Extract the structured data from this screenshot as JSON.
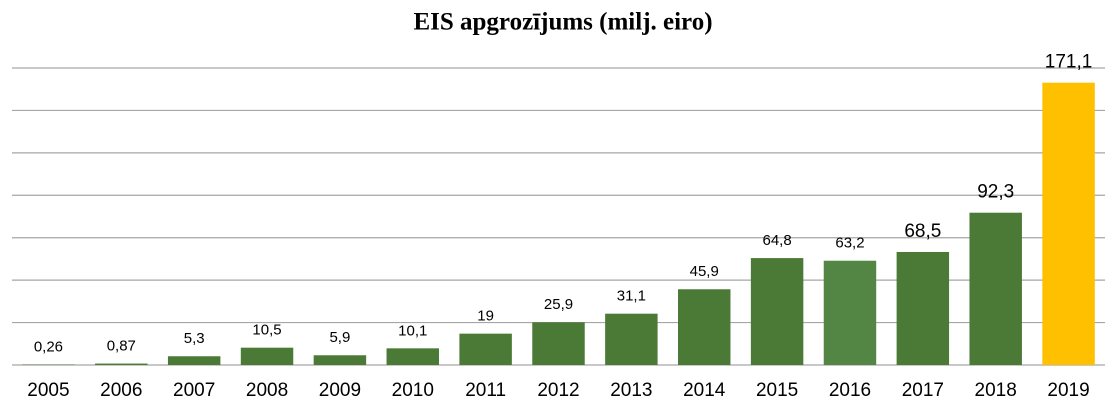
{
  "chart_data": {
    "type": "bar",
    "title": "EIS apgrozījums (milj. eiro)",
    "categories": [
      "2005",
      "2006",
      "2007",
      "2008",
      "2009",
      "2010",
      "2011",
      "2012",
      "2013",
      "2014",
      "2015",
      "2016",
      "2017",
      "2018",
      "2019"
    ],
    "values": [
      0.26,
      0.87,
      5.3,
      10.5,
      5.9,
      10.1,
      19,
      25.9,
      31.1,
      45.9,
      64.8,
      63.2,
      68.5,
      92.3,
      171.1
    ],
    "value_labels": [
      "0,26",
      "0,87",
      "5,3",
      "10,5",
      "5,9",
      "10,1",
      "19",
      "25,9",
      "31,1",
      "45,9",
      "64,8",
      "63,2",
      "68,5",
      "92,3",
      "171,1"
    ],
    "colors": [
      "#4a7a36",
      "#4a7a36",
      "#4a7a36",
      "#4a7a36",
      "#4a7a36",
      "#4a7a36",
      "#4a7a36",
      "#4a7a36",
      "#4a7a36",
      "#4a7a36",
      "#4a7a36",
      "#538644",
      "#4a7a36",
      "#4a7a36",
      "#ffc000"
    ],
    "ylim": [
      0,
      180
    ],
    "grid": true
  }
}
